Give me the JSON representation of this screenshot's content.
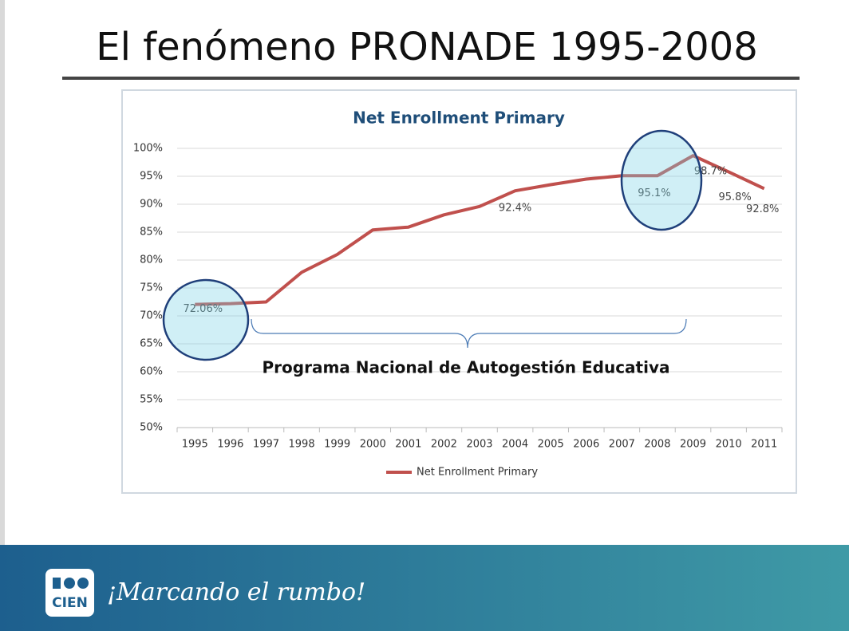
{
  "slide_title": "El fenómeno PRONADE 1995-2008",
  "chart_data": {
    "type": "line",
    "title": "Net Enrollment Primary",
    "categories": [
      "1995",
      "1996",
      "1997",
      "1998",
      "1999",
      "2000",
      "2001",
      "2002",
      "2003",
      "2004",
      "2005",
      "2006",
      "2007",
      "2008",
      "2009",
      "2010",
      "2011"
    ],
    "series": [
      {
        "name": "Net Enrollment Primary",
        "color": "#c0504d",
        "values": [
          72.06,
          72.2,
          72.5,
          77.8,
          81.0,
          85.4,
          85.9,
          88.1,
          89.6,
          92.4,
          93.5,
          94.5,
          95.1,
          95.1,
          98.7,
          95.8,
          92.8
        ],
        "value_labels": [
          "72.06%",
          null,
          null,
          null,
          null,
          null,
          null,
          null,
          null,
          "92.4%",
          null,
          null,
          null,
          "95.1%",
          "98.7%",
          "95.8%",
          "92.8%"
        ]
      }
    ],
    "ylim": [
      50,
      100
    ],
    "yticks": [
      {
        "value": 50,
        "label": "50%"
      },
      {
        "value": 55,
        "label": "55%"
      },
      {
        "value": 60,
        "label": "60%"
      },
      {
        "value": 65,
        "label": "65%"
      },
      {
        "value": 70,
        "label": "70%"
      },
      {
        "value": 75,
        "label": "75%"
      },
      {
        "value": 80,
        "label": "80%"
      },
      {
        "value": 85,
        "label": "85%"
      },
      {
        "value": 90,
        "label": "90%"
      },
      {
        "value": 95,
        "label": "95%"
      },
      {
        "value": 100,
        "label": "100%"
      }
    ],
    "grid": true,
    "legend": "bottom",
    "annotation": "Programa Nacional de Autogestión Educativa"
  },
  "footer": {
    "logo": "CIEN",
    "slogan": "¡Marcando el rumbo!"
  }
}
